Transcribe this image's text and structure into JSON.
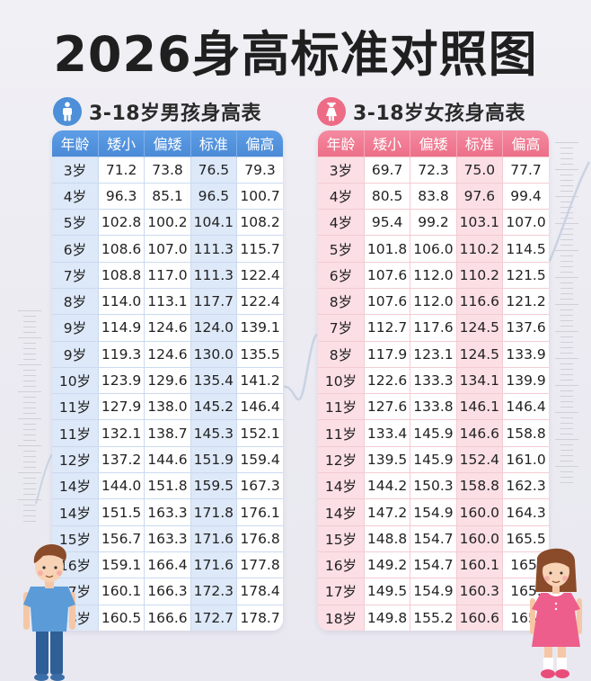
{
  "title": "2026身高标准对照图",
  "colors": {
    "boy_accent": "#4d8fd8",
    "boy_tint": "#dde8f8",
    "girl_accent": "#ee6b86",
    "girl_tint": "#fbdfe5",
    "background": "#ecebf2"
  },
  "boy": {
    "section_title": "3-18岁男孩身高表",
    "icon": "boy-icon",
    "columns": [
      "年龄",
      "矮小",
      "偏矮",
      "标准",
      "偏高"
    ],
    "rows": [
      [
        "3岁",
        "71.2",
        "73.8",
        "76.5",
        "79.3"
      ],
      [
        "4岁",
        "96.3",
        "85.1",
        "96.5",
        "100.7"
      ],
      [
        "5岁",
        "102.8",
        "100.2",
        "104.1",
        "108.2"
      ],
      [
        "6岁",
        "108.6",
        "107.0",
        "111.3",
        "115.7"
      ],
      [
        "7岁",
        "108.8",
        "117.0",
        "111.3",
        "122.4"
      ],
      [
        "8岁",
        "114.0",
        "113.1",
        "117.7",
        "122.4"
      ],
      [
        "9岁",
        "114.9",
        "124.6",
        "124.0",
        "139.1"
      ],
      [
        "9岁",
        "119.3",
        "124.6",
        "130.0",
        "135.5"
      ],
      [
        "10岁",
        "123.9",
        "129.6",
        "135.4",
        "141.2"
      ],
      [
        "11岁",
        "127.9",
        "138.0",
        "145.2",
        "146.4"
      ],
      [
        "11岁",
        "132.1",
        "138.7",
        "145.3",
        "152.1"
      ],
      [
        "12岁",
        "137.2",
        "144.6",
        "151.9",
        "159.4"
      ],
      [
        "14岁",
        "144.0",
        "151.8",
        "159.5",
        "167.3"
      ],
      [
        "14岁",
        "151.5",
        "163.3",
        "171.8",
        "176.1"
      ],
      [
        "15岁",
        "156.7",
        "163.3",
        "171.6",
        "176.8"
      ],
      [
        "16岁",
        "159.1",
        "166.4",
        "171.6",
        "177.8"
      ],
      [
        "17岁",
        "160.1",
        "166.3",
        "172.3",
        "178.4"
      ],
      [
        "18岁",
        "160.5",
        "166.6",
        "172.7",
        "178.7"
      ]
    ]
  },
  "girl": {
    "section_title": "3-18岁女孩身高表",
    "icon": "girl-icon",
    "columns": [
      "年龄",
      "矮小",
      "偏矮",
      "标准",
      "偏高"
    ],
    "rows": [
      [
        "3岁",
        "69.7",
        "72.3",
        "75.0",
        "77.7"
      ],
      [
        "4岁",
        "80.5",
        "83.8",
        "97.6",
        "99.4"
      ],
      [
        "4岁",
        "95.4",
        "99.2",
        "103.1",
        "107.0"
      ],
      [
        "5岁",
        "101.8",
        "106.0",
        "110.2",
        "114.5"
      ],
      [
        "6岁",
        "107.6",
        "112.0",
        "110.2",
        "121.5"
      ],
      [
        "8岁",
        "107.6",
        "112.0",
        "116.6",
        "121.2"
      ],
      [
        "7岁",
        "112.7",
        "117.6",
        "124.5",
        "137.6"
      ],
      [
        "8岁",
        "117.9",
        "123.1",
        "124.5",
        "133.9"
      ],
      [
        "10岁",
        "122.6",
        "133.3",
        "134.1",
        "139.9"
      ],
      [
        "11岁",
        "127.6",
        "133.8",
        "146.1",
        "146.4"
      ],
      [
        "11岁",
        "133.4",
        "145.9",
        "146.6",
        "158.8"
      ],
      [
        "12岁",
        "139.5",
        "145.9",
        "152.4",
        "161.0"
      ],
      [
        "14岁",
        "144.2",
        "150.3",
        "158.8",
        "162.3"
      ],
      [
        "14岁",
        "147.2",
        "154.9",
        "160.0",
        "164.3"
      ],
      [
        "15岁",
        "148.8",
        "154.7",
        "160.0",
        "165.5"
      ],
      [
        "16岁",
        "149.2",
        "154.7",
        "160.1",
        "165."
      ],
      [
        "17岁",
        "149.5",
        "154.9",
        "160.3",
        "165."
      ],
      [
        "18岁",
        "149.8",
        "155.2",
        "160.6",
        "165."
      ]
    ]
  },
  "illustrations": {
    "left": "boy-illustration",
    "right": "girl-illustration"
  }
}
